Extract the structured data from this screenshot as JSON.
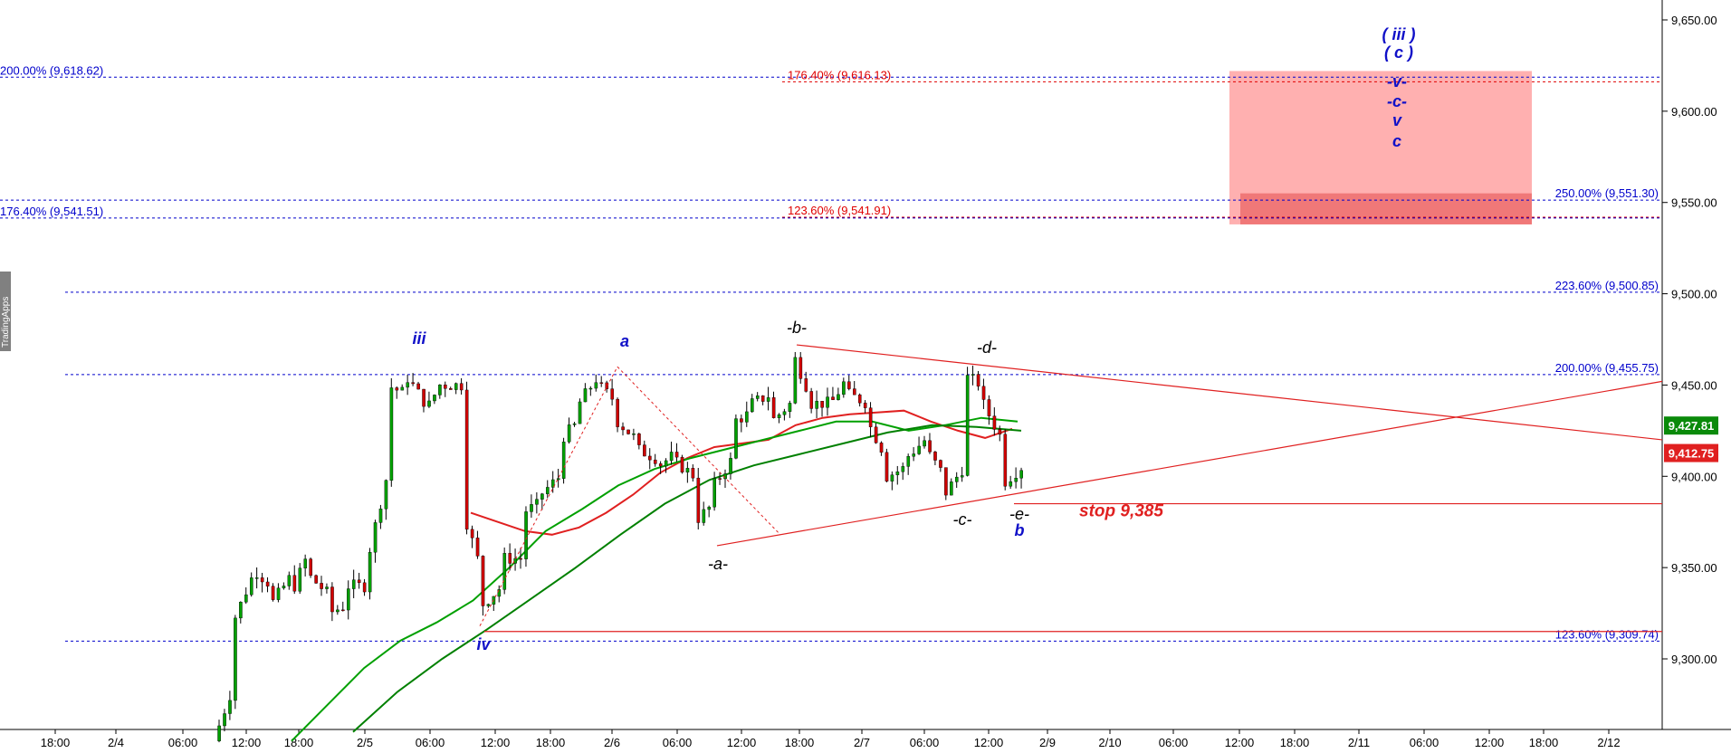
{
  "chart_data": {
    "type": "candlestick",
    "title": "",
    "xlabel": "",
    "ylabel": "",
    "ylim": [
      9255,
      9665
    ],
    "y_ticks": [
      "9,650.00",
      "9,600.00",
      "9,550.00",
      "9,500.00",
      "9,450.00",
      "9,400.00",
      "9,350.00",
      "9,300.00"
    ],
    "x_ticks": [
      "18:00",
      "2/4",
      "06:00",
      "12:00",
      "18:00",
      "2/5",
      "06:00",
      "12:00",
      "18:00",
      "2/6",
      "06:00",
      "12:00",
      "18:00",
      "2/7",
      "06:00",
      "12:00",
      "2/9",
      "2/10",
      "06:00",
      "12:00",
      "18:00",
      "2/11",
      "06:00",
      "12:00",
      "18:00",
      "2/12"
    ],
    "price_path": [
      [
        9255,
        9255
      ],
      [
        9285,
        9320
      ],
      [
        9345,
        9350
      ],
      [
        9340,
        9330
      ],
      [
        9345,
        9335
      ],
      [
        9360,
        9345
      ],
      [
        9335,
        9325
      ],
      [
        9330,
        9340
      ],
      [
        9340,
        9355
      ],
      [
        9400,
        9450
      ],
      [
        9445,
        9455
      ],
      [
        9440,
        9435
      ],
      [
        9455,
        9450
      ],
      [
        9450,
        9380
      ],
      [
        9345,
        9330
      ],
      [
        9340,
        9355
      ],
      [
        9355,
        9380
      ],
      [
        9385,
        9390
      ],
      [
        9400,
        9420
      ],
      [
        9430,
        9440
      ],
      [
        9455,
        9450
      ],
      [
        9440,
        9430
      ],
      [
        9420,
        9415
      ],
      [
        9410,
        9405
      ],
      [
        9412,
        9408
      ],
      [
        9400,
        9375
      ],
      [
        9385,
        9395
      ],
      [
        9410,
        9430
      ],
      [
        9435,
        9440
      ],
      [
        9445,
        9430
      ],
      [
        9440,
        9470
      ],
      [
        9445,
        9440
      ],
      [
        9440,
        9438
      ],
      [
        9455,
        9445
      ],
      [
        9440,
        9430
      ],
      [
        9410,
        9400
      ],
      [
        9405,
        9410
      ],
      [
        9420,
        9415
      ],
      [
        9400,
        9390
      ],
      [
        9405,
        9455
      ],
      [
        9450,
        9440
      ],
      [
        9420,
        9396
      ],
      [
        9405,
        9412
      ]
    ],
    "price_series": [
      {
        "name": "",
        "color": "#e02020",
        "values": [
          9380,
          9375,
          9370,
          9368,
          9372,
          9380,
          9390,
          9402,
          9410,
          9416,
          9418,
          9420,
          9428,
          9432,
          9434,
          9435,
          9436,
          9430,
          9425,
          9421,
          9426
        ]
      },
      {
        "name": "",
        "color": "#00a000",
        "values": [
          9255,
          9275,
          9295,
          9310,
          9320,
          9332,
          9350,
          9370,
          9382,
          9395,
          9404,
          9410,
          9415,
          9420,
          9425,
          9430,
          9430,
          9425,
          9428,
          9432,
          9430
        ]
      },
      {
        "name": "",
        "color": "#008000",
        "values": [
          9260,
          9282,
          9300,
          9316,
          9333,
          9350,
          9368,
          9385,
          9398,
          9406,
          9412,
          9418,
          9424,
          9428,
          9427,
          9425
        ]
      }
    ],
    "fib_levels": [
      {
        "label": "200.00% (9,618.62)",
        "value": 9618.62,
        "color": "#0000cc"
      },
      {
        "label": "176.40% (9,616.13)",
        "value": 9616.13,
        "color": "#e00000"
      },
      {
        "label": "250.00% (9,551.30)",
        "value": 9551.3,
        "color": "#0000cc"
      },
      {
        "label": "123.60% (9,541.91)",
        "value": 9541.91,
        "color": "#e00000"
      },
      {
        "label": "176.40% (9,541.51)",
        "value": 9541.51,
        "color": "#0000cc"
      },
      {
        "label": "223.60% (9,500.85)",
        "value": 9500.85,
        "color": "#0000cc"
      },
      {
        "label": "200.00% (9,455.75)",
        "value": 9455.75,
        "color": "#0000cc"
      },
      {
        "label": "123.60% (9,309.74)",
        "value": 9309.74,
        "color": "#0000cc"
      }
    ],
    "target_zone": {
      "low": 9538,
      "high": 9622,
      "inner_low": 9538,
      "inner_high": 9555
    },
    "stop": {
      "label": "stop 9,385",
      "value": 9385
    },
    "current_prices": [
      {
        "label": "9,427.81",
        "value": 9427.81,
        "color": "#0a8a0a"
      },
      {
        "label": "9,412.75",
        "value": 9412.75,
        "color": "#e02020"
      }
    ],
    "wave_labels": [
      {
        "text": "iii",
        "color": "blue"
      },
      {
        "text": "iv",
        "color": "blue"
      },
      {
        "text": "a",
        "color": "blue"
      },
      {
        "text": "-a-",
        "color": "black"
      },
      {
        "text": "-b-",
        "color": "black"
      },
      {
        "text": "-c-",
        "color": "black"
      },
      {
        "text": "-d-",
        "color": "black"
      },
      {
        "text": "-e-",
        "color": "black"
      },
      {
        "text": "b",
        "color": "blue"
      },
      {
        "text": "( iii )",
        "color": "blue"
      },
      {
        "text": "( c )",
        "color": "blue"
      },
      {
        "text": "-v-",
        "color": "blue"
      },
      {
        "text": "-c-",
        "color": "blue"
      },
      {
        "text": "v",
        "color": "blue"
      },
      {
        "text": "c",
        "color": "blue"
      }
    ]
  },
  "brand": "TradingApps"
}
